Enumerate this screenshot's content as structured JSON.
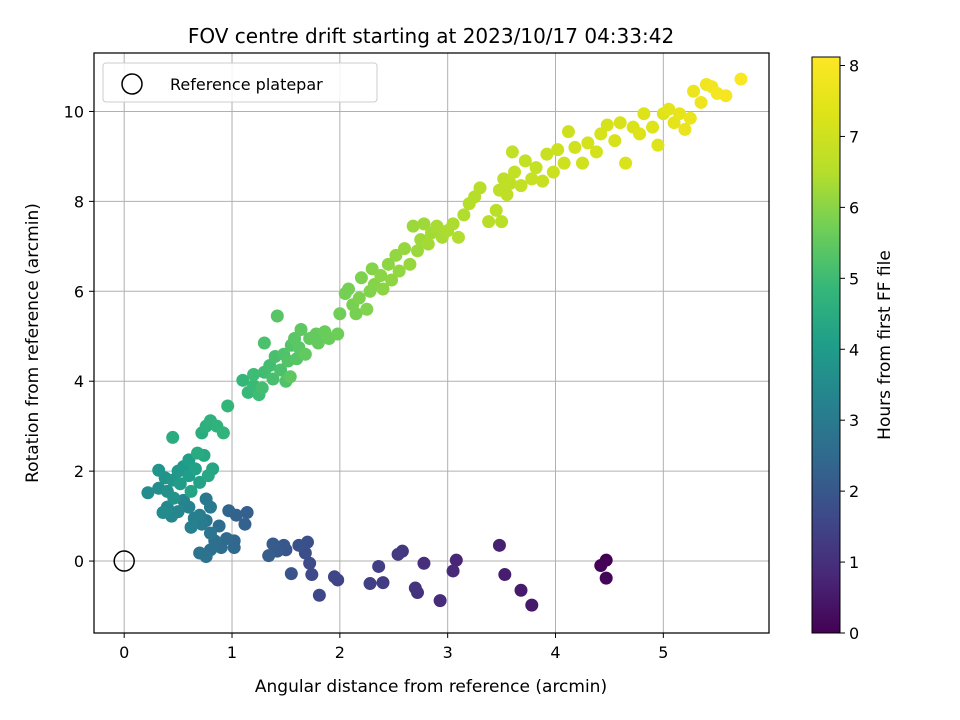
{
  "chart_data": {
    "type": "scatter",
    "title": "FOV centre drift starting at 2023/10/17 04:33:42",
    "xlabel": "Angular distance from reference (arcmin)",
    "ylabel": "Rotation from reference (arcmin)",
    "colorbar_label": "Hours from first FF file",
    "xlim": [
      -0.28,
      5.98
    ],
    "ylim": [
      -1.6,
      11.3
    ],
    "clim": [
      0,
      8.12
    ],
    "xticks": [
      0,
      1,
      2,
      3,
      4,
      5
    ],
    "yticks": [
      0,
      2,
      4,
      6,
      8,
      10
    ],
    "cticks": [
      0,
      1,
      2,
      3,
      4,
      5,
      6,
      7,
      8
    ],
    "grid": true,
    "colormap": "viridis",
    "legend": {
      "placement": "top-left",
      "entries": [
        {
          "label": "Reference platepar",
          "marker": "open-circle"
        }
      ]
    },
    "reference_point": {
      "x": 0,
      "y": 0
    },
    "points": [
      {
        "x": 4.47,
        "y": 0.02,
        "c": 0.0
      },
      {
        "x": 4.42,
        "y": -0.1,
        "c": 0.05
      },
      {
        "x": 4.47,
        "y": -0.38,
        "c": 0.1
      },
      {
        "x": 3.78,
        "y": -0.98,
        "c": 0.5
      },
      {
        "x": 3.68,
        "y": -0.65,
        "c": 0.55
      },
      {
        "x": 3.53,
        "y": -0.3,
        "c": 0.6
      },
      {
        "x": 3.48,
        "y": 0.35,
        "c": 0.65
      },
      {
        "x": 3.08,
        "y": 0.02,
        "c": 0.8
      },
      {
        "x": 3.05,
        "y": -0.22,
        "c": 0.85
      },
      {
        "x": 2.93,
        "y": -0.88,
        "c": 0.9
      },
      {
        "x": 2.78,
        "y": -0.05,
        "c": 1.0
      },
      {
        "x": 2.72,
        "y": -0.7,
        "c": 1.05
      },
      {
        "x": 2.7,
        "y": -0.6,
        "c": 1.1
      },
      {
        "x": 2.58,
        "y": 0.22,
        "c": 1.2
      },
      {
        "x": 2.54,
        "y": 0.15,
        "c": 1.25
      },
      {
        "x": 2.4,
        "y": -0.48,
        "c": 1.3
      },
      {
        "x": 2.36,
        "y": -0.12,
        "c": 1.35
      },
      {
        "x": 2.28,
        "y": -0.5,
        "c": 1.4
      },
      {
        "x": 1.98,
        "y": -0.42,
        "c": 1.5
      },
      {
        "x": 1.95,
        "y": -0.35,
        "c": 1.55
      },
      {
        "x": 1.81,
        "y": -0.76,
        "c": 1.6
      },
      {
        "x": 1.74,
        "y": -0.3,
        "c": 1.65
      },
      {
        "x": 1.72,
        "y": -0.05,
        "c": 1.7
      },
      {
        "x": 1.68,
        "y": 0.18,
        "c": 1.75
      },
      {
        "x": 1.7,
        "y": 0.42,
        "c": 1.8
      },
      {
        "x": 1.62,
        "y": 0.35,
        "c": 1.85
      },
      {
        "x": 1.55,
        "y": -0.28,
        "c": 1.9
      },
      {
        "x": 1.5,
        "y": 0.25,
        "c": 1.95
      },
      {
        "x": 1.48,
        "y": 0.35,
        "c": 2.0
      },
      {
        "x": 1.42,
        "y": 0.22,
        "c": 2.05
      },
      {
        "x": 1.38,
        "y": 0.38,
        "c": 2.1
      },
      {
        "x": 1.34,
        "y": 0.12,
        "c": 2.15
      },
      {
        "x": 1.14,
        "y": 1.08,
        "c": 2.2
      },
      {
        "x": 1.12,
        "y": 0.82,
        "c": 2.25
      },
      {
        "x": 1.04,
        "y": 1.02,
        "c": 2.3
      },
      {
        "x": 0.97,
        "y": 1.12,
        "c": 2.35
      },
      {
        "x": 1.02,
        "y": 0.45,
        "c": 2.4
      },
      {
        "x": 1.02,
        "y": 0.3,
        "c": 2.45
      },
      {
        "x": 0.95,
        "y": 0.5,
        "c": 2.5
      },
      {
        "x": 0.9,
        "y": 0.3,
        "c": 2.55
      },
      {
        "x": 0.88,
        "y": 0.78,
        "c": 2.6
      },
      {
        "x": 0.84,
        "y": 0.45,
        "c": 2.65
      },
      {
        "x": 0.8,
        "y": 0.25,
        "c": 2.7
      },
      {
        "x": 0.76,
        "y": 0.1,
        "c": 2.75
      },
      {
        "x": 0.7,
        "y": 0.18,
        "c": 2.8
      },
      {
        "x": 0.8,
        "y": 0.62,
        "c": 2.85
      },
      {
        "x": 0.76,
        "y": 0.9,
        "c": 2.9
      },
      {
        "x": 0.76,
        "y": 1.38,
        "c": 2.95
      },
      {
        "x": 0.8,
        "y": 1.2,
        "c": 3.0
      },
      {
        "x": 0.72,
        "y": 0.82,
        "c": 3.05
      },
      {
        "x": 0.7,
        "y": 1.02,
        "c": 3.1
      },
      {
        "x": 0.65,
        "y": 0.95,
        "c": 3.15
      },
      {
        "x": 0.62,
        "y": 0.75,
        "c": 3.2
      },
      {
        "x": 0.6,
        "y": 1.2,
        "c": 3.25
      },
      {
        "x": 0.55,
        "y": 1.35,
        "c": 3.3
      },
      {
        "x": 0.5,
        "y": 1.1,
        "c": 3.35
      },
      {
        "x": 0.44,
        "y": 1.0,
        "c": 3.4
      },
      {
        "x": 0.4,
        "y": 1.2,
        "c": 3.45
      },
      {
        "x": 0.36,
        "y": 1.08,
        "c": 3.5
      },
      {
        "x": 0.22,
        "y": 1.52,
        "c": 3.55
      },
      {
        "x": 0.32,
        "y": 1.62,
        "c": 3.6
      },
      {
        "x": 0.4,
        "y": 1.55,
        "c": 3.65
      },
      {
        "x": 0.46,
        "y": 1.4,
        "c": 3.7
      },
      {
        "x": 0.38,
        "y": 1.85,
        "c": 3.75
      },
      {
        "x": 0.32,
        "y": 2.02,
        "c": 3.8
      },
      {
        "x": 0.45,
        "y": 1.8,
        "c": 3.85
      },
      {
        "x": 0.5,
        "y": 2.0,
        "c": 3.9
      },
      {
        "x": 0.55,
        "y": 2.1,
        "c": 3.95
      },
      {
        "x": 0.52,
        "y": 1.72,
        "c": 4.0
      },
      {
        "x": 0.6,
        "y": 1.9,
        "c": 4.05
      },
      {
        "x": 0.6,
        "y": 2.25,
        "c": 4.1
      },
      {
        "x": 0.66,
        "y": 2.05,
        "c": 4.15
      },
      {
        "x": 0.7,
        "y": 1.75,
        "c": 4.2
      },
      {
        "x": 0.62,
        "y": 1.55,
        "c": 4.25
      },
      {
        "x": 0.82,
        "y": 2.05,
        "c": 4.3
      },
      {
        "x": 0.78,
        "y": 1.9,
        "c": 4.35
      },
      {
        "x": 0.74,
        "y": 2.35,
        "c": 4.4
      },
      {
        "x": 0.68,
        "y": 2.4,
        "c": 4.45
      },
      {
        "x": 0.45,
        "y": 2.75,
        "c": 4.5
      },
      {
        "x": 0.72,
        "y": 2.85,
        "c": 4.55
      },
      {
        "x": 0.76,
        "y": 3.0,
        "c": 4.6
      },
      {
        "x": 0.8,
        "y": 3.12,
        "c": 4.65
      },
      {
        "x": 0.86,
        "y": 3.0,
        "c": 4.7
      },
      {
        "x": 0.92,
        "y": 2.85,
        "c": 4.75
      },
      {
        "x": 0.96,
        "y": 3.45,
        "c": 4.8
      },
      {
        "x": 1.1,
        "y": 4.02,
        "c": 4.85
      },
      {
        "x": 1.15,
        "y": 3.75,
        "c": 4.9
      },
      {
        "x": 1.2,
        "y": 3.9,
        "c": 4.95
      },
      {
        "x": 1.25,
        "y": 3.7,
        "c": 5.0
      },
      {
        "x": 1.2,
        "y": 4.15,
        "c": 5.0
      },
      {
        "x": 1.3,
        "y": 4.2,
        "c": 5.05
      },
      {
        "x": 1.28,
        "y": 3.85,
        "c": 5.1
      },
      {
        "x": 1.35,
        "y": 4.35,
        "c": 5.1
      },
      {
        "x": 1.38,
        "y": 4.05,
        "c": 5.15
      },
      {
        "x": 1.4,
        "y": 4.55,
        "c": 5.15
      },
      {
        "x": 1.3,
        "y": 4.85,
        "c": 5.2
      },
      {
        "x": 1.45,
        "y": 4.25,
        "c": 5.2
      },
      {
        "x": 1.48,
        "y": 4.6,
        "c": 5.25
      },
      {
        "x": 1.5,
        "y": 4.0,
        "c": 5.25
      },
      {
        "x": 1.52,
        "y": 4.45,
        "c": 5.3
      },
      {
        "x": 1.55,
        "y": 4.8,
        "c": 5.3
      },
      {
        "x": 1.42,
        "y": 5.45,
        "c": 5.35
      },
      {
        "x": 1.6,
        "y": 4.5,
        "c": 5.35
      },
      {
        "x": 1.58,
        "y": 4.95,
        "c": 5.4
      },
      {
        "x": 1.62,
        "y": 4.75,
        "c": 5.4
      },
      {
        "x": 1.54,
        "y": 4.1,
        "c": 5.45
      },
      {
        "x": 1.64,
        "y": 5.15,
        "c": 5.45
      },
      {
        "x": 1.68,
        "y": 4.6,
        "c": 5.5
      },
      {
        "x": 1.72,
        "y": 4.95,
        "c": 5.5
      },
      {
        "x": 1.78,
        "y": 5.05,
        "c": 5.55
      },
      {
        "x": 1.8,
        "y": 4.85,
        "c": 5.55
      },
      {
        "x": 1.86,
        "y": 5.1,
        "c": 5.6
      },
      {
        "x": 1.9,
        "y": 4.95,
        "c": 5.6
      },
      {
        "x": 1.98,
        "y": 5.05,
        "c": 5.65
      },
      {
        "x": 2.0,
        "y": 5.5,
        "c": 5.7
      },
      {
        "x": 2.05,
        "y": 5.95,
        "c": 5.75
      },
      {
        "x": 2.08,
        "y": 6.05,
        "c": 5.75
      },
      {
        "x": 2.12,
        "y": 5.7,
        "c": 5.8
      },
      {
        "x": 2.15,
        "y": 5.5,
        "c": 5.8
      },
      {
        "x": 2.18,
        "y": 5.85,
        "c": 5.85
      },
      {
        "x": 2.2,
        "y": 6.3,
        "c": 5.85
      },
      {
        "x": 2.25,
        "y": 5.6,
        "c": 5.9
      },
      {
        "x": 2.28,
        "y": 6.0,
        "c": 5.9
      },
      {
        "x": 2.32,
        "y": 6.15,
        "c": 5.95
      },
      {
        "x": 2.3,
        "y": 6.5,
        "c": 5.95
      },
      {
        "x": 2.38,
        "y": 6.35,
        "c": 6.0
      },
      {
        "x": 2.4,
        "y": 6.05,
        "c": 6.0
      },
      {
        "x": 2.45,
        "y": 6.6,
        "c": 6.05
      },
      {
        "x": 2.48,
        "y": 6.25,
        "c": 6.05
      },
      {
        "x": 2.52,
        "y": 6.8,
        "c": 6.1
      },
      {
        "x": 2.55,
        "y": 6.45,
        "c": 6.1
      },
      {
        "x": 2.6,
        "y": 6.95,
        "c": 6.15
      },
      {
        "x": 2.65,
        "y": 6.6,
        "c": 6.15
      },
      {
        "x": 2.68,
        "y": 7.45,
        "c": 6.2
      },
      {
        "x": 2.72,
        "y": 6.9,
        "c": 6.2
      },
      {
        "x": 2.75,
        "y": 7.15,
        "c": 6.25
      },
      {
        "x": 2.78,
        "y": 7.5,
        "c": 6.25
      },
      {
        "x": 2.82,
        "y": 7.05,
        "c": 6.3
      },
      {
        "x": 2.85,
        "y": 7.3,
        "c": 6.3
      },
      {
        "x": 2.9,
        "y": 7.45,
        "c": 6.35
      },
      {
        "x": 2.95,
        "y": 7.2,
        "c": 6.35
      },
      {
        "x": 3.0,
        "y": 7.35,
        "c": 6.4
      },
      {
        "x": 3.05,
        "y": 7.5,
        "c": 6.4
      },
      {
        "x": 3.1,
        "y": 7.2,
        "c": 6.45
      },
      {
        "x": 3.15,
        "y": 7.7,
        "c": 6.45
      },
      {
        "x": 3.2,
        "y": 7.95,
        "c": 6.5
      },
      {
        "x": 3.25,
        "y": 8.1,
        "c": 6.5
      },
      {
        "x": 3.3,
        "y": 8.3,
        "c": 6.55
      },
      {
        "x": 3.38,
        "y": 7.55,
        "c": 6.55
      },
      {
        "x": 3.45,
        "y": 7.8,
        "c": 6.6
      },
      {
        "x": 3.5,
        "y": 7.55,
        "c": 6.6
      },
      {
        "x": 3.48,
        "y": 8.25,
        "c": 6.65
      },
      {
        "x": 3.52,
        "y": 8.5,
        "c": 6.65
      },
      {
        "x": 3.55,
        "y": 8.15,
        "c": 6.7
      },
      {
        "x": 3.58,
        "y": 8.4,
        "c": 6.7
      },
      {
        "x": 3.6,
        "y": 9.1,
        "c": 6.75
      },
      {
        "x": 3.62,
        "y": 8.65,
        "c": 6.75
      },
      {
        "x": 3.68,
        "y": 8.35,
        "c": 6.8
      },
      {
        "x": 3.72,
        "y": 8.9,
        "c": 6.8
      },
      {
        "x": 3.78,
        "y": 8.5,
        "c": 6.85
      },
      {
        "x": 3.82,
        "y": 8.75,
        "c": 6.85
      },
      {
        "x": 3.88,
        "y": 8.45,
        "c": 6.9
      },
      {
        "x": 3.92,
        "y": 9.05,
        "c": 6.9
      },
      {
        "x": 3.98,
        "y": 8.65,
        "c": 6.95
      },
      {
        "x": 4.02,
        "y": 9.15,
        "c": 6.95
      },
      {
        "x": 4.08,
        "y": 8.85,
        "c": 7.0
      },
      {
        "x": 4.12,
        "y": 9.55,
        "c": 7.0
      },
      {
        "x": 4.18,
        "y": 9.2,
        "c": 7.05
      },
      {
        "x": 4.25,
        "y": 8.85,
        "c": 7.05
      },
      {
        "x": 4.3,
        "y": 9.3,
        "c": 7.1
      },
      {
        "x": 4.38,
        "y": 9.1,
        "c": 7.1
      },
      {
        "x": 4.42,
        "y": 9.5,
        "c": 7.15
      },
      {
        "x": 4.48,
        "y": 9.7,
        "c": 7.15
      },
      {
        "x": 4.55,
        "y": 9.35,
        "c": 7.2
      },
      {
        "x": 4.6,
        "y": 9.75,
        "c": 7.2
      },
      {
        "x": 4.65,
        "y": 8.85,
        "c": 7.25
      },
      {
        "x": 4.72,
        "y": 9.65,
        "c": 7.25
      },
      {
        "x": 4.78,
        "y": 9.5,
        "c": 7.3
      },
      {
        "x": 4.82,
        "y": 9.95,
        "c": 7.3
      },
      {
        "x": 4.9,
        "y": 9.65,
        "c": 7.35
      },
      {
        "x": 4.95,
        "y": 9.25,
        "c": 7.35
      },
      {
        "x": 5.0,
        "y": 9.95,
        "c": 7.4
      },
      {
        "x": 5.05,
        "y": 10.05,
        "c": 7.45
      },
      {
        "x": 5.1,
        "y": 9.75,
        "c": 7.5
      },
      {
        "x": 5.15,
        "y": 9.95,
        "c": 7.55
      },
      {
        "x": 5.2,
        "y": 9.6,
        "c": 7.6
      },
      {
        "x": 5.25,
        "y": 9.85,
        "c": 7.65
      },
      {
        "x": 5.28,
        "y": 10.45,
        "c": 7.7
      },
      {
        "x": 5.35,
        "y": 10.2,
        "c": 7.75
      },
      {
        "x": 5.4,
        "y": 10.6,
        "c": 7.8
      },
      {
        "x": 5.45,
        "y": 10.55,
        "c": 7.85
      },
      {
        "x": 5.5,
        "y": 10.4,
        "c": 7.9
      },
      {
        "x": 5.58,
        "y": 10.35,
        "c": 7.95
      },
      {
        "x": 5.72,
        "y": 10.72,
        "c": 8.05
      }
    ]
  }
}
